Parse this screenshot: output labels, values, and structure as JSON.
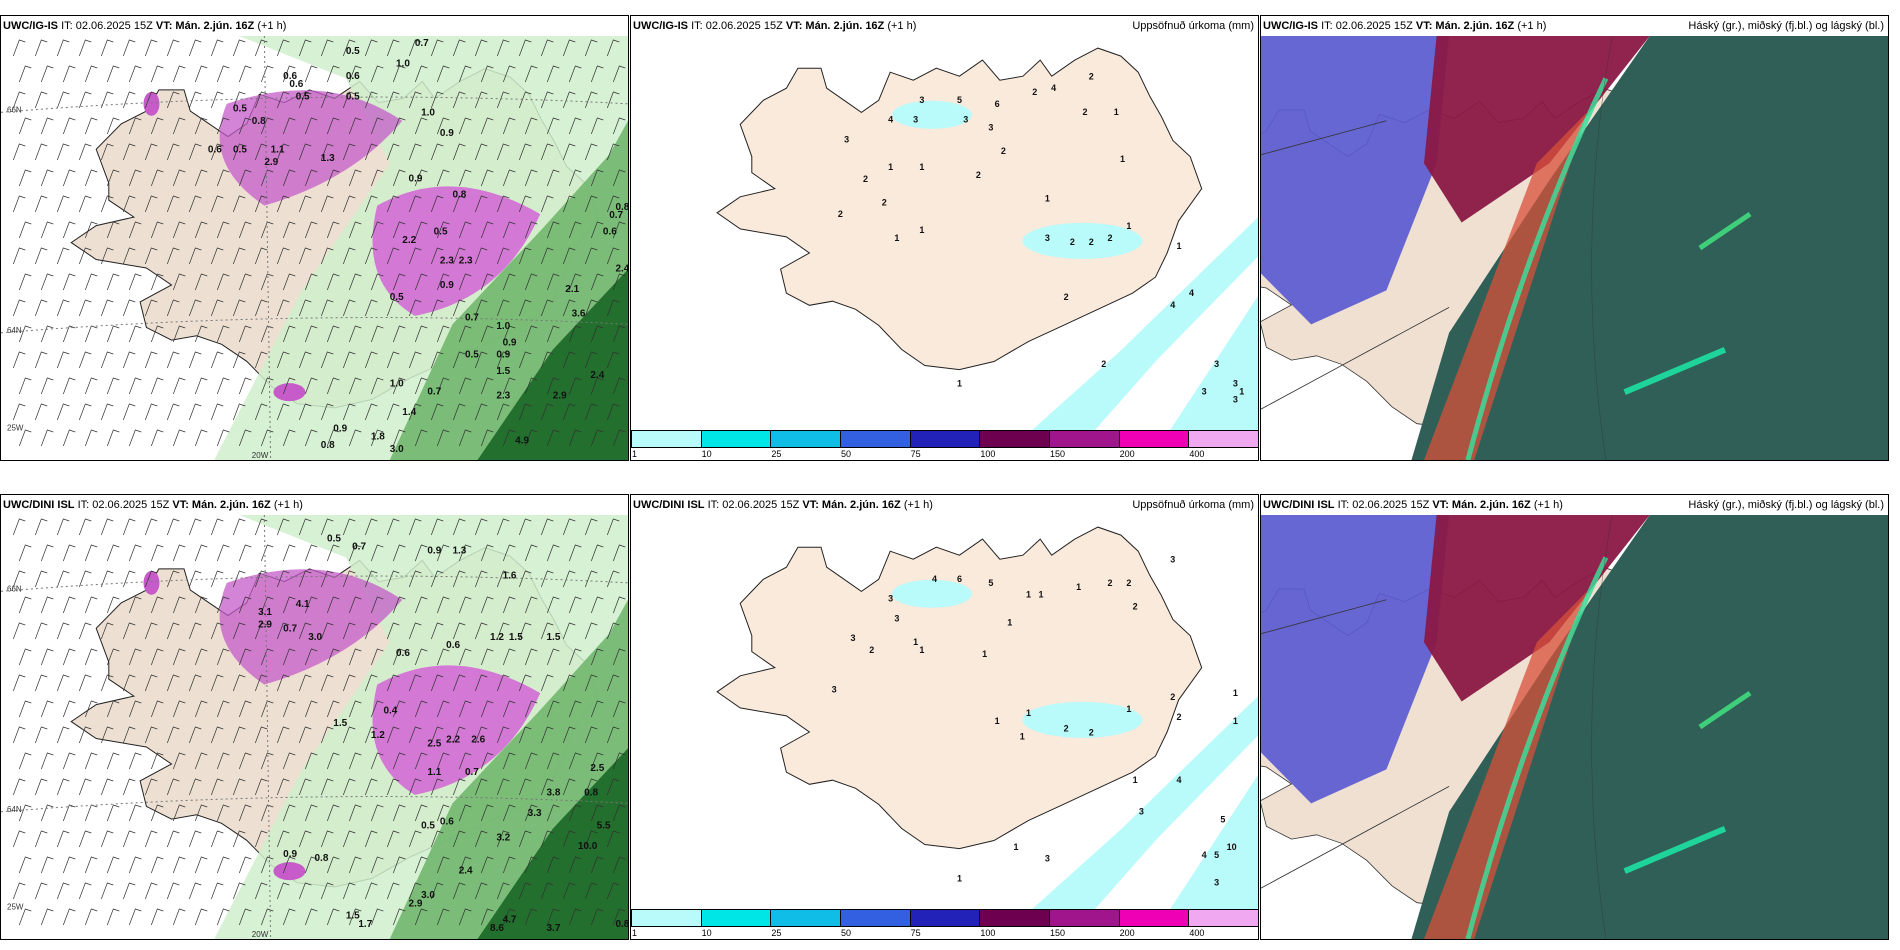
{
  "panels": [
    {
      "model": "UWC/IG-IS",
      "it": "IT: 02.06.2025 15Z",
      "vt_label": "VT:",
      "vt": "Mán. 2.jún. 16Z",
      "lead": "(+1 h)",
      "right": ""
    },
    {
      "model": "UWC/IG-IS",
      "it": "IT: 02.06.2025 15Z",
      "vt_label": "VT:",
      "vt": "Mán. 2.jún. 16Z",
      "lead": "(+1 h)",
      "right": "Uppsöfnuð úrkoma (mm)"
    },
    {
      "model": "UWC/IG-IS",
      "it": "IT: 02.06.2025 15Z",
      "vt_label": "VT:",
      "vt": "Mán. 2.jún. 16Z",
      "lead": "(+1 h)",
      "right": "Háský (gr.), miðský (fj.bl.) og lágský (bl.)"
    },
    {
      "model": "UWC/DINI ISL",
      "it": "IT: 02.06.2025 15Z",
      "vt_label": "VT:",
      "vt": "Mán. 2.jún. 16Z",
      "lead": "(+1 h)",
      "right": ""
    },
    {
      "model": "UWC/DINI ISL",
      "it": "IT: 02.06.2025 15Z",
      "vt_label": "VT:",
      "vt": "Mán. 2.jún. 16Z",
      "lead": "(+1 h)",
      "right": "Uppsöfnuð úrkoma (mm)"
    },
    {
      "model": "UWC/DINI ISL",
      "it": "IT: 02.06.2025 15Z",
      "vt_label": "VT:",
      "vt": "Mán. 2.jún. 16Z",
      "lead": "(+1 h)",
      "right": "Háský (gr.), miðský (fj.bl.) og lágský (bl.)"
    }
  ],
  "grid_labels": {
    "lat66": "66N",
    "lat64": "64N",
    "lon25": "25W",
    "lon20": "20W"
  },
  "colorbar": {
    "ticks": [
      "1",
      "10",
      "25",
      "50",
      "75",
      "100",
      "150",
      "200",
      "400"
    ],
    "colors": [
      "#b9fafa",
      "#00e6e6",
      "#10bde6",
      "#3360e0",
      "#2222b8",
      "#6e0050",
      "#a0148c",
      "#f000b4",
      "#f0a8f0"
    ]
  },
  "precip_labels_top": [
    [
      "3",
      0.34,
      0.27
    ],
    [
      "4",
      0.41,
      0.22
    ],
    [
      "3",
      0.46,
      0.17
    ],
    [
      "5",
      0.52,
      0.17
    ],
    [
      "6",
      0.58,
      0.18
    ],
    [
      "2",
      0.64,
      0.15
    ],
    [
      "4",
      0.67,
      0.14
    ],
    [
      "2",
      0.72,
      0.2
    ],
    [
      "2",
      0.73,
      0.11
    ],
    [
      "1",
      0.77,
      0.2
    ],
    [
      "3",
      0.45,
      0.22
    ],
    [
      "3",
      0.53,
      0.22
    ],
    [
      "3",
      0.57,
      0.24
    ],
    [
      "2",
      0.59,
      0.3
    ],
    [
      "2",
      0.55,
      0.36
    ],
    [
      "1",
      0.46,
      0.34
    ],
    [
      "2",
      0.37,
      0.37
    ],
    [
      "1",
      0.41,
      0.34
    ],
    [
      "2",
      0.4,
      0.43
    ],
    [
      "2",
      0.33,
      0.46
    ],
    [
      "1",
      0.46,
      0.5
    ],
    [
      "1",
      0.42,
      0.52
    ],
    [
      "1",
      0.66,
      0.42
    ],
    [
      "1",
      0.78,
      0.32
    ],
    [
      "3",
      0.66,
      0.52
    ],
    [
      "2",
      0.7,
      0.53
    ],
    [
      "2",
      0.73,
      0.53
    ],
    [
      "1",
      0.79,
      0.49
    ],
    [
      "2",
      0.76,
      0.52
    ],
    [
      "1",
      0.87,
      0.54
    ],
    [
      "4",
      0.89,
      0.66
    ],
    [
      "4",
      0.86,
      0.69
    ],
    [
      "2",
      0.75,
      0.84
    ],
    [
      "3",
      0.93,
      0.84
    ],
    [
      "3",
      0.96,
      0.89
    ],
    [
      "1",
      0.97,
      0.91
    ],
    [
      "3",
      0.91,
      0.91
    ],
    [
      "3",
      0.96,
      0.93
    ],
    [
      "1",
      0.52,
      0.89
    ],
    [
      "2",
      0.69,
      0.67
    ]
  ],
  "precip_labels_bottom": [
    [
      "3",
      0.86,
      0.12
    ],
    [
      "4",
      0.48,
      0.17
    ],
    [
      "6",
      0.52,
      0.17
    ],
    [
      "5",
      0.57,
      0.18
    ],
    [
      "3",
      0.41,
      0.22
    ],
    [
      "3",
      0.42,
      0.27
    ],
    [
      "1",
      0.63,
      0.21
    ],
    [
      "1",
      0.65,
      0.21
    ],
    [
      "1",
      0.71,
      0.19
    ],
    [
      "2",
      0.76,
      0.18
    ],
    [
      "2",
      0.79,
      0.18
    ],
    [
      "2",
      0.8,
      0.24
    ],
    [
      "3",
      0.35,
      0.32
    ],
    [
      "2",
      0.38,
      0.35
    ],
    [
      "1",
      0.45,
      0.33
    ],
    [
      "1",
      0.46,
      0.35
    ],
    [
      "1",
      0.56,
      0.36
    ],
    [
      "1",
      0.6,
      0.28
    ],
    [
      "3",
      0.32,
      0.45
    ],
    [
      "1",
      0.63,
      0.51
    ],
    [
      "1",
      0.58,
      0.53
    ],
    [
      "2",
      0.69,
      0.55
    ],
    [
      "1",
      0.62,
      0.57
    ],
    [
      "2",
      0.73,
      0.56
    ],
    [
      "1",
      0.79,
      0.5
    ],
    [
      "2",
      0.86,
      0.47
    ],
    [
      "2",
      0.87,
      0.52
    ],
    [
      "1",
      0.96,
      0.46
    ],
    [
      "1",
      0.96,
      0.53
    ],
    [
      "1",
      0.8,
      0.68
    ],
    [
      "3",
      0.81,
      0.76
    ],
    [
      "4",
      0.87,
      0.68
    ],
    [
      "5",
      0.94,
      0.78
    ],
    [
      "10",
      0.95,
      0.85
    ],
    [
      "4",
      0.91,
      0.87
    ],
    [
      "5",
      0.93,
      0.87
    ],
    [
      "3",
      0.66,
      0.88
    ],
    [
      "1",
      0.61,
      0.85
    ],
    [
      "1",
      0.52,
      0.93
    ],
    [
      "3",
      0.93,
      0.94
    ]
  ],
  "rain_labels_top": [
    [
      "0.5",
      0.55,
      0.02
    ],
    [
      "0.7",
      0.66,
      0.0
    ],
    [
      "1.0",
      0.63,
      0.05
    ],
    [
      "0.6",
      0.45,
      0.08
    ],
    [
      "0.6",
      0.55,
      0.08
    ],
    [
      "0.6",
      0.46,
      0.1
    ],
    [
      "0.5",
      0.47,
      0.13
    ],
    [
      "0.5",
      0.37,
      0.16
    ],
    [
      "0.8",
      0.4,
      0.19
    ],
    [
      "0.5",
      0.55,
      0.13
    ],
    [
      "1.0",
      0.67,
      0.17
    ],
    [
      "0.9",
      0.7,
      0.22
    ],
    [
      "0.6",
      0.33,
      0.26
    ],
    [
      "0.5",
      0.37,
      0.26
    ],
    [
      "1.1",
      0.43,
      0.26
    ],
    [
      "2.9",
      0.42,
      0.29
    ],
    [
      "1.3",
      0.51,
      0.28
    ],
    [
      "0.9",
      0.65,
      0.33
    ],
    [
      "0.8",
      0.72,
      0.37
    ],
    [
      "0.5",
      0.69,
      0.46
    ],
    [
      "2.2",
      0.64,
      0.48
    ],
    [
      "2.3",
      0.7,
      0.53
    ],
    [
      "2.3",
      0.73,
      0.53
    ],
    [
      "0.9",
      0.7,
      0.59
    ],
    [
      "0.5",
      0.62,
      0.62
    ],
    [
      "0.7",
      0.74,
      0.67
    ],
    [
      "1.0",
      0.79,
      0.69
    ],
    [
      "0.9",
      0.8,
      0.73
    ],
    [
      "0.9",
      0.79,
      0.76
    ],
    [
      "0.5",
      0.74,
      0.76
    ],
    [
      "1.5",
      0.79,
      0.8
    ],
    [
      "1.0",
      0.62,
      0.83
    ],
    [
      "0.7",
      0.68,
      0.85
    ],
    [
      "1.4",
      0.64,
      0.9
    ],
    [
      "2.3",
      0.79,
      0.86
    ],
    [
      "0.9",
      0.53,
      0.94
    ],
    [
      "0.8",
      0.51,
      0.98
    ],
    [
      "1.8",
      0.59,
      0.96
    ],
    [
      "3.0",
      0.62,
      0.99
    ],
    [
      "4.9",
      0.82,
      0.97
    ],
    [
      "2.1",
      0.9,
      0.6
    ],
    [
      "3.6",
      0.91,
      0.66
    ],
    [
      "2.9",
      0.88,
      0.86
    ],
    [
      "2.4",
      0.94,
      0.81
    ],
    [
      "0.7",
      0.97,
      0.42
    ],
    [
      "0.6",
      0.96,
      0.46
    ],
    [
      "0.8",
      0.98,
      0.4
    ],
    [
      "2.4",
      0.98,
      0.55
    ]
  ],
  "rain_labels_bottom": [
    [
      "0.5",
      0.52,
      0.04
    ],
    [
      "0.7",
      0.56,
      0.06
    ],
    [
      "0.9",
      0.68,
      0.07
    ],
    [
      "1.3",
      0.72,
      0.07
    ],
    [
      "1.6",
      0.8,
      0.13
    ],
    [
      "3.1",
      0.41,
      0.22
    ],
    [
      "4.1",
      0.47,
      0.2
    ],
    [
      "2.9",
      0.41,
      0.25
    ],
    [
      "0.7",
      0.45,
      0.26
    ],
    [
      "3.0",
      0.49,
      0.28
    ],
    [
      "1.5",
      0.81,
      0.28
    ],
    [
      "1.2",
      0.78,
      0.28
    ],
    [
      "1.5",
      0.87,
      0.28
    ],
    [
      "0.6",
      0.63,
      0.32
    ],
    [
      "0.6",
      0.71,
      0.3
    ],
    [
      "1.5",
      0.53,
      0.49
    ],
    [
      "0.4",
      0.61,
      0.46
    ],
    [
      "1.2",
      0.59,
      0.52
    ],
    [
      "2.5",
      0.68,
      0.54
    ],
    [
      "2.2",
      0.71,
      0.53
    ],
    [
      "2.6",
      0.75,
      0.53
    ],
    [
      "1.1",
      0.68,
      0.61
    ],
    [
      "0.7",
      0.74,
      0.61
    ],
    [
      "0.5",
      0.67,
      0.74
    ],
    [
      "0.6",
      0.7,
      0.73
    ],
    [
      "2.5",
      0.94,
      0.6
    ],
    [
      "3.8",
      0.87,
      0.66
    ],
    [
      "0.8",
      0.93,
      0.66
    ],
    [
      "3.3",
      0.84,
      0.71
    ],
    [
      "3.2",
      0.79,
      0.77
    ],
    [
      "2.4",
      0.73,
      0.85
    ],
    [
      "2.9",
      0.65,
      0.93
    ],
    [
      "3.0",
      0.67,
      0.91
    ],
    [
      "10.0",
      0.92,
      0.79
    ],
    [
      "5.5",
      0.95,
      0.74
    ],
    [
      "1.5",
      0.55,
      0.96
    ],
    [
      "1.7",
      0.57,
      0.98
    ],
    [
      "8.6",
      0.78,
      0.99
    ],
    [
      "4.7",
      0.8,
      0.97
    ],
    [
      "3.7",
      0.87,
      0.99
    ],
    [
      "0.8",
      0.98,
      0.98
    ],
    [
      "0.9",
      0.45,
      0.81
    ],
    [
      "0.8",
      0.5,
      0.82
    ]
  ]
}
